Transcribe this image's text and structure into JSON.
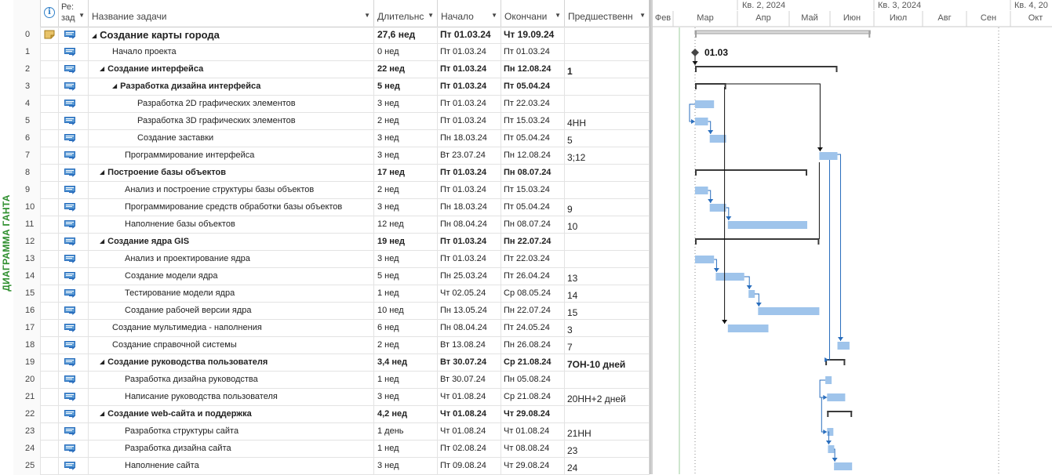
{
  "view_label": "ДИАГРАММА ГАНТА",
  "columns": {
    "info_icon": "info-icon",
    "mode_line1": "Ре:",
    "mode_line2": "зад",
    "name": "Название задачи",
    "duration": "Длительнс",
    "start": "Начало",
    "finish": "Окончани",
    "predecessors": "Предшественн"
  },
  "tasks": [
    {
      "id": "0",
      "name": "Создание карты города",
      "duration": "27,6 нед",
      "start": "Пт 01.03.24",
      "finish": "Чт 19.09.24",
      "pred": "",
      "level": 0,
      "summary": true,
      "project": true
    },
    {
      "id": "1",
      "name": "Начало проекта",
      "duration": "0 нед",
      "start": "Пт 01.03.24",
      "finish": "Пт 01.03.24",
      "pred": "",
      "level": 1,
      "summary": false
    },
    {
      "id": "2",
      "name": "Создание интерфейса",
      "duration": "22 нед",
      "start": "Пт 01.03.24",
      "finish": "Пн 12.08.24",
      "pred": "1",
      "level": 1,
      "summary": true
    },
    {
      "id": "3",
      "name": "Разработка дизайна интерфейса",
      "duration": "5 нед",
      "start": "Пт 01.03.24",
      "finish": "Пт 05.04.24",
      "pred": "",
      "level": 2,
      "summary": true
    },
    {
      "id": "4",
      "name": "Разработка 2D графических элементов",
      "duration": "3 нед",
      "start": "Пт 01.03.24",
      "finish": "Пт 22.03.24",
      "pred": "",
      "level": 3,
      "summary": false
    },
    {
      "id": "5",
      "name": "Разработка 3D графических элементов",
      "duration": "2 нед",
      "start": "Пт 01.03.24",
      "finish": "Пт 15.03.24",
      "pred": "4НН",
      "level": 3,
      "summary": false
    },
    {
      "id": "6",
      "name": "Создание заставки",
      "duration": "3 нед",
      "start": "Пн 18.03.24",
      "finish": "Пт 05.04.24",
      "pred": "5",
      "level": 3,
      "summary": false
    },
    {
      "id": "7",
      "name": "Программирование интерфейса",
      "duration": "3 нед",
      "start": "Вт 23.07.24",
      "finish": "Пн 12.08.24",
      "pred": "3;12",
      "level": 2,
      "summary": false
    },
    {
      "id": "8",
      "name": "Построение базы объектов",
      "duration": "17 нед",
      "start": "Пт 01.03.24",
      "finish": "Пн 08.07.24",
      "pred": "",
      "level": 1,
      "summary": true
    },
    {
      "id": "9",
      "name": "Анализ и построение структуры базы объектов",
      "duration": "2 нед",
      "start": "Пт 01.03.24",
      "finish": "Пт 15.03.24",
      "pred": "",
      "level": 2,
      "summary": false
    },
    {
      "id": "10",
      "name": "Программирование средств обработки базы объектов",
      "duration": "3 нед",
      "start": "Пн 18.03.24",
      "finish": "Пт 05.04.24",
      "pred": "9",
      "level": 2,
      "summary": false
    },
    {
      "id": "11",
      "name": "Наполнение базы объектов",
      "duration": "12 нед",
      "start": "Пн 08.04.24",
      "finish": "Пн 08.07.24",
      "pred": "10",
      "level": 2,
      "summary": false
    },
    {
      "id": "12",
      "name": "Создание ядра GIS",
      "duration": "19 нед",
      "start": "Пт 01.03.24",
      "finish": "Пн 22.07.24",
      "pred": "",
      "level": 1,
      "summary": true
    },
    {
      "id": "13",
      "name": "Анализ и проектирование ядра",
      "duration": "3 нед",
      "start": "Пт 01.03.24",
      "finish": "Пт 22.03.24",
      "pred": "",
      "level": 2,
      "summary": false
    },
    {
      "id": "14",
      "name": "Создание модели ядра",
      "duration": "5 нед",
      "start": "Пн 25.03.24",
      "finish": "Пт 26.04.24",
      "pred": "13",
      "level": 2,
      "summary": false
    },
    {
      "id": "15",
      "name": "Тестирование модели ядра",
      "duration": "1 нед",
      "start": "Чт 02.05.24",
      "finish": "Ср 08.05.24",
      "pred": "14",
      "level": 2,
      "summary": false
    },
    {
      "id": "16",
      "name": "Создание рабочей версии ядра",
      "duration": "10 нед",
      "start": "Пн 13.05.24",
      "finish": "Пн 22.07.24",
      "pred": "15",
      "level": 2,
      "summary": false
    },
    {
      "id": "17",
      "name": "Создание мультимедиа - наполнения",
      "duration": "6 нед",
      "start": "Пн 08.04.24",
      "finish": "Пт 24.05.24",
      "pred": "3",
      "level": 1,
      "summary": false
    },
    {
      "id": "18",
      "name": "Создание справочной системы",
      "duration": "2 нед",
      "start": "Вт 13.08.24",
      "finish": "Пн 26.08.24",
      "pred": "7",
      "level": 1,
      "summary": false
    },
    {
      "id": "19",
      "name": "Создание руководства пользователя",
      "duration": "3,4 нед",
      "start": "Вт 30.07.24",
      "finish": "Ср 21.08.24",
      "pred": "7ОН-10 дней",
      "level": 1,
      "summary": true
    },
    {
      "id": "20",
      "name": "Разработка дизайна руководства",
      "duration": "1 нед",
      "start": "Вт 30.07.24",
      "finish": "Пн 05.08.24",
      "pred": "",
      "level": 2,
      "summary": false
    },
    {
      "id": "21",
      "name": "Написание руководства пользователя",
      "duration": "3 нед",
      "start": "Чт 01.08.24",
      "finish": "Ср 21.08.24",
      "pred": "20НН+2 дней",
      "level": 2,
      "summary": false
    },
    {
      "id": "22",
      "name": "Создание web-сайта и поддержка",
      "duration": "4,2 нед",
      "start": "Чт 01.08.24",
      "finish": "Чт 29.08.24",
      "pred": "",
      "level": 1,
      "summary": true
    },
    {
      "id": "23",
      "name": "Разработка структуры сайта",
      "duration": "1 день",
      "start": "Чт 01.08.24",
      "finish": "Чт 01.08.24",
      "pred": "21НН",
      "level": 2,
      "summary": false
    },
    {
      "id": "24",
      "name": "Разработка дизайна сайта",
      "duration": "1 нед",
      "start": "Пт 02.08.24",
      "finish": "Чт 08.08.24",
      "pred": "23",
      "level": 2,
      "summary": false
    },
    {
      "id": "25",
      "name": "Наполнение сайта",
      "duration": "3 нед",
      "start": "Пт 09.08.24",
      "finish": "Чт 29.08.24",
      "pred": "24",
      "level": 2,
      "summary": false
    }
  ],
  "timeline": {
    "quarters": [
      "Кв. 2, 2024",
      "Кв. 3, 2024",
      "Кв. 4, 20"
    ],
    "months": [
      "Фев",
      "Мар",
      "Апр",
      "Май",
      "Июн",
      "Июл",
      "Авг",
      "Сен",
      "Окт"
    ],
    "milestone_label": "01.03"
  },
  "colors": {
    "bar": "#9fc4eb",
    "summary": "#3a3a3a",
    "link": "#2a6ebd",
    "link_dark": "#111111",
    "view_label": "#2f8f2f"
  }
}
